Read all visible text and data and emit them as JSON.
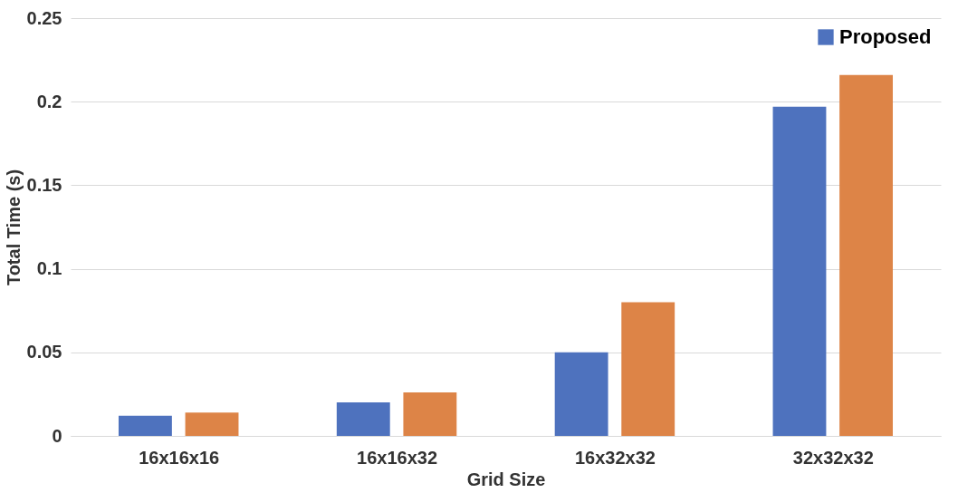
{
  "chart_data": {
    "type": "bar",
    "xlabel": "Grid Size",
    "ylabel": "Total Time (s)",
    "categories": [
      "16x16x16",
      "16x16x32",
      "16x32x32",
      "32x32x32"
    ],
    "series": [
      {
        "name": "Proposed",
        "color": "#4e72be",
        "values": [
          0.012,
          0.02,
          0.05,
          0.197
        ]
      },
      {
        "color": "#dd8447",
        "values": [
          0.014,
          0.026,
          0.08,
          0.216
        ]
      }
    ],
    "ylim": [
      0,
      0.25
    ],
    "yticks": [
      0,
      0.05,
      0.1,
      0.15,
      0.2,
      0.25
    ],
    "grid": "y",
    "legend": "top right"
  }
}
